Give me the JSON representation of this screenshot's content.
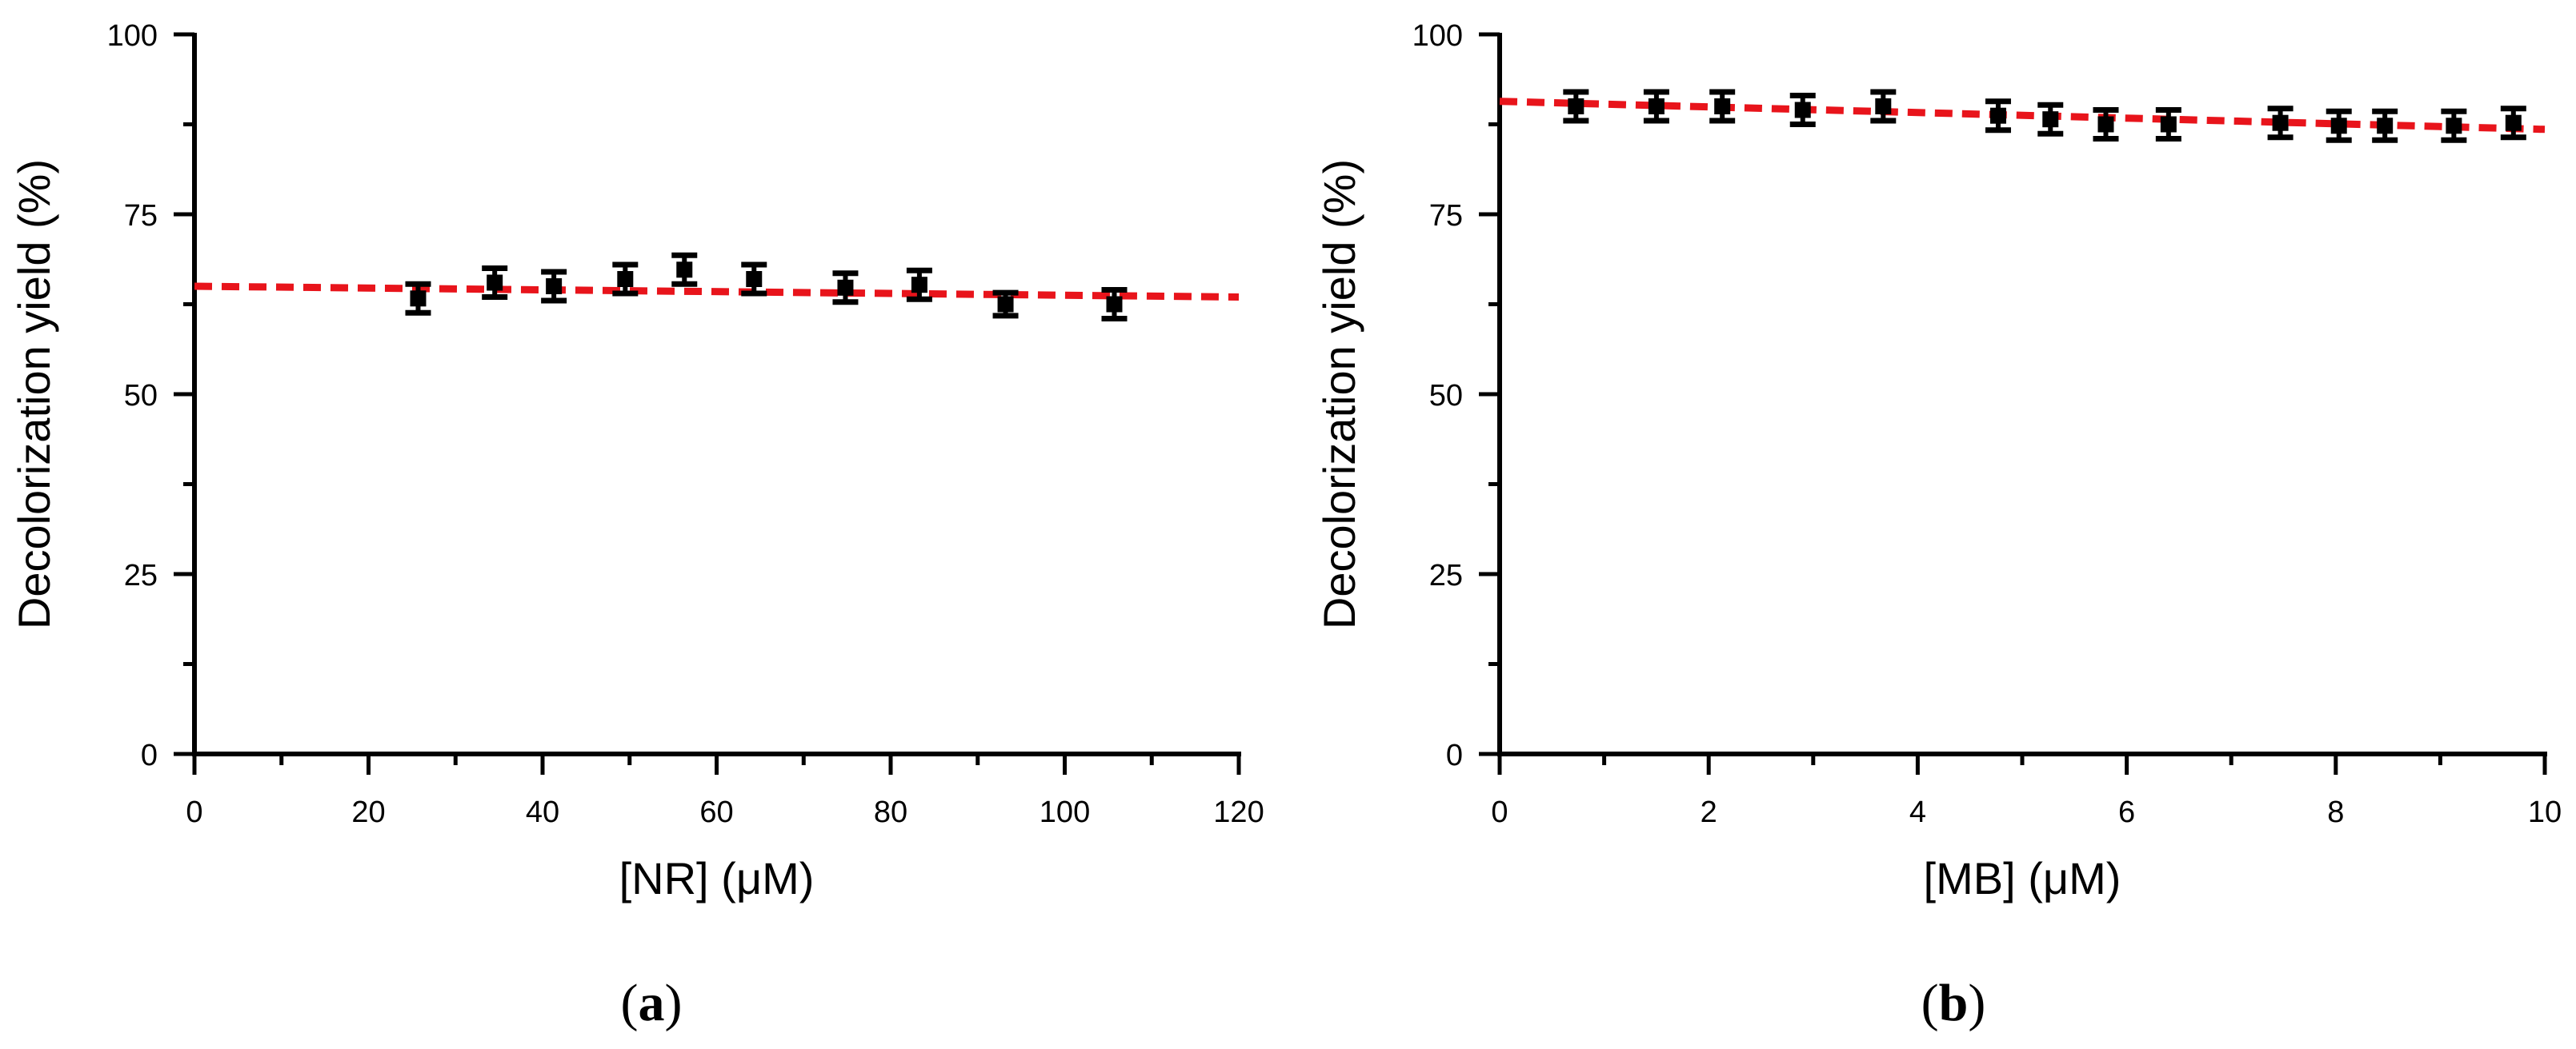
{
  "chart_data": [
    {
      "type": "scatter",
      "panel_label": {
        "open": "(",
        "letter": "a",
        "close": ")"
      },
      "xlabel": "[NR] (μM)",
      "ylabel": "Decolorization yield (%)",
      "xlim": [
        0,
        120
      ],
      "ylim": [
        0,
        100
      ],
      "x_ticks": [
        0,
        20,
        40,
        60,
        80,
        100,
        120
      ],
      "y_ticks": [
        0,
        25,
        50,
        75,
        100
      ],
      "x_minor_step": 10,
      "y_minor_step": 12.5,
      "grid": false,
      "marker_color": "#000000",
      "fit_color": "#e8141b",
      "points": [
        {
          "x": 25.7,
          "y": 63.3,
          "err": 2.0
        },
        {
          "x": 34.5,
          "y": 65.5,
          "err": 2.0
        },
        {
          "x": 41.3,
          "y": 65.0,
          "err": 2.0
        },
        {
          "x": 49.5,
          "y": 66.0,
          "err": 2.0
        },
        {
          "x": 56.3,
          "y": 67.3,
          "err": 2.0
        },
        {
          "x": 64.3,
          "y": 66.0,
          "err": 2.0
        },
        {
          "x": 74.8,
          "y": 64.8,
          "err": 2.0
        },
        {
          "x": 83.3,
          "y": 65.2,
          "err": 2.0
        },
        {
          "x": 93.2,
          "y": 62.5,
          "err": 1.6
        },
        {
          "x": 105.7,
          "y": 62.5,
          "err": 2.0
        }
      ],
      "fit_line": {
        "x": [
          0,
          120
        ],
        "y": [
          65.0,
          63.5
        ]
      }
    },
    {
      "type": "scatter",
      "panel_label": {
        "open": "(",
        "letter": "b",
        "close": ")"
      },
      "xlabel": "[MB] (μM)",
      "ylabel": "Decolorization yield (%)",
      "xlim": [
        0,
        10
      ],
      "ylim": [
        0,
        100
      ],
      "x_ticks": [
        0,
        2,
        4,
        6,
        8,
        10
      ],
      "y_ticks": [
        0,
        25,
        50,
        75,
        100
      ],
      "x_minor_step": 1,
      "y_minor_step": 12.5,
      "grid": false,
      "marker_color": "#000000",
      "fit_color": "#e8141b",
      "points": [
        {
          "x": 0.73,
          "y": 90.0,
          "err": 2.0
        },
        {
          "x": 1.5,
          "y": 90.0,
          "err": 2.0
        },
        {
          "x": 2.13,
          "y": 90.0,
          "err": 2.0
        },
        {
          "x": 2.9,
          "y": 89.5,
          "err": 2.0
        },
        {
          "x": 3.67,
          "y": 90.0,
          "err": 2.0
        },
        {
          "x": 4.77,
          "y": 88.7,
          "err": 2.0
        },
        {
          "x": 5.27,
          "y": 88.2,
          "err": 2.0
        },
        {
          "x": 5.8,
          "y": 87.5,
          "err": 2.0
        },
        {
          "x": 6.4,
          "y": 87.5,
          "err": 2.0
        },
        {
          "x": 7.47,
          "y": 87.7,
          "err": 2.0
        },
        {
          "x": 8.03,
          "y": 87.3,
          "err": 2.0
        },
        {
          "x": 8.47,
          "y": 87.3,
          "err": 2.0
        },
        {
          "x": 9.13,
          "y": 87.3,
          "err": 2.0
        },
        {
          "x": 9.7,
          "y": 87.7,
          "err": 2.0
        }
      ],
      "fit_line": {
        "x": [
          0,
          10
        ],
        "y": [
          90.7,
          86.8
        ]
      }
    }
  ]
}
